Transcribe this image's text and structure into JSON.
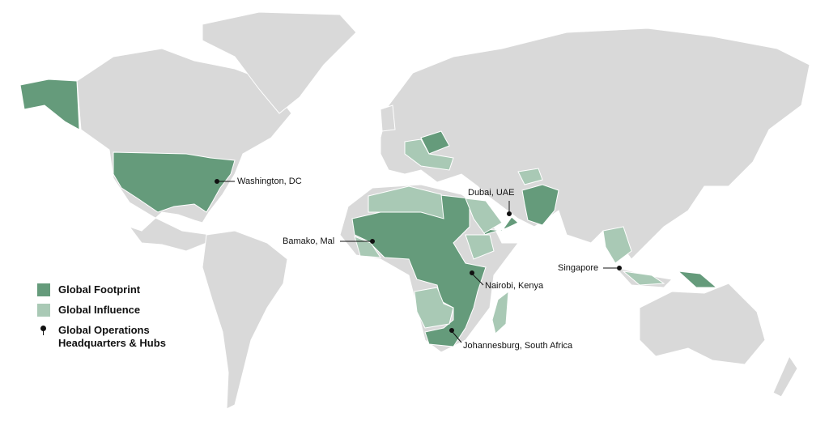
{
  "colors": {
    "land": "#d9d9d9",
    "footprint": "#659b7b",
    "influence": "#a9c9b5",
    "marker": "#111111"
  },
  "legend": [
    {
      "label": "Global Footprint",
      "type": "footprint"
    },
    {
      "label": "Global Influence",
      "type": "influence"
    },
    {
      "label": "Global Operations\nHeadquarters & Hubs",
      "line1": "Global Operations",
      "line2": "Headquarters & Hubs",
      "type": "marker",
      "icon": "pin-icon"
    }
  ],
  "hubs": [
    {
      "name": "Washington, DC"
    },
    {
      "name": "Dubai, UAE"
    },
    {
      "name": "Bamako, Mal"
    },
    {
      "name": "Nairobi, Kenya"
    },
    {
      "name": "Singapore"
    },
    {
      "name": "Johannesburg, South Africa"
    }
  ]
}
